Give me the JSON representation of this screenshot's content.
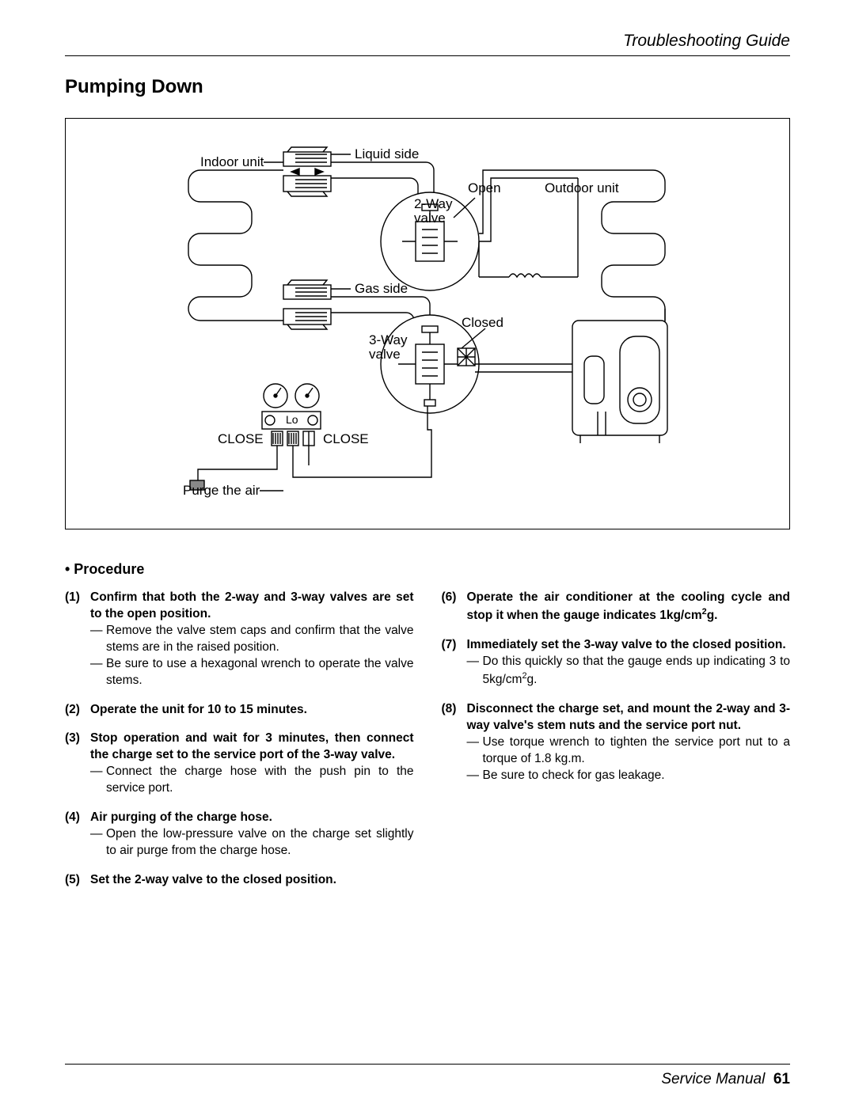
{
  "header": {
    "title": "Troubleshooting Guide"
  },
  "section": {
    "title": "Pumping Down"
  },
  "diagram": {
    "labels": {
      "indoor_unit": "Indoor unit",
      "liquid_side": "Liquid side",
      "outdoor_unit": "Outdoor unit",
      "open": "Open",
      "two_way": "2-Way",
      "valve_top": "valve",
      "gas_side": "Gas side",
      "closed": "Closed",
      "three_way": "3-Way",
      "valve_bot": "valve",
      "lo": "Lo",
      "close_l": "CLOSE",
      "close_r": "CLOSE",
      "purge": "Purge the air"
    },
    "style": {
      "stroke": "#000000",
      "stroke_width": 1.4,
      "fill": "#ffffff"
    }
  },
  "procedure": {
    "title": "• Procedure",
    "left": [
      {
        "num": "(1)",
        "title": "Confirm that both the 2-way and 3-way valves are set to the open position.",
        "bullets": [
          "Remove the valve stem caps and confirm that the valve stems are in the raised position.",
          "Be sure to use a hexagonal wrench to operate the valve stems."
        ]
      },
      {
        "num": "(2)",
        "title": "Operate the unit for 10 to 15 minutes.",
        "bullets": []
      },
      {
        "num": "(3)",
        "title": "Stop operation and wait for 3 minutes, then connect the charge set to the service port of the 3-way valve.",
        "bullets": [
          "Connect the charge hose with the push pin to the service port."
        ]
      },
      {
        "num": "(4)",
        "title": "Air purging of the charge hose.",
        "bullets": [
          "Open the low-pressure valve on the charge set slightly to air purge from the charge hose."
        ]
      },
      {
        "num": "(5)",
        "title": "Set the 2-way valve to the closed position.",
        "bullets": []
      }
    ],
    "right": [
      {
        "num": "(6)",
        "title_html": "Operate the air conditioner at the cooling cycle and stop it when the gauge indicates 1kg/cm²g.",
        "bullets": []
      },
      {
        "num": "(7)",
        "title": "Immediately set the 3-way valve to the closed position.",
        "bullets_html": [
          "Do this quickly so that the gauge ends up indicating 3 to 5kg/cm²g."
        ]
      },
      {
        "num": "(8)",
        "title": "Disconnect the charge set, and mount the 2-way and 3-way valve's stem nuts and the service port nut.",
        "bullets": [
          "Use torque wrench to tighten the service port nut to a torque of 1.8 kg.m.",
          "Be sure to check for gas leakage."
        ]
      }
    ]
  },
  "footer": {
    "label": "Service Manual",
    "page": "61"
  }
}
